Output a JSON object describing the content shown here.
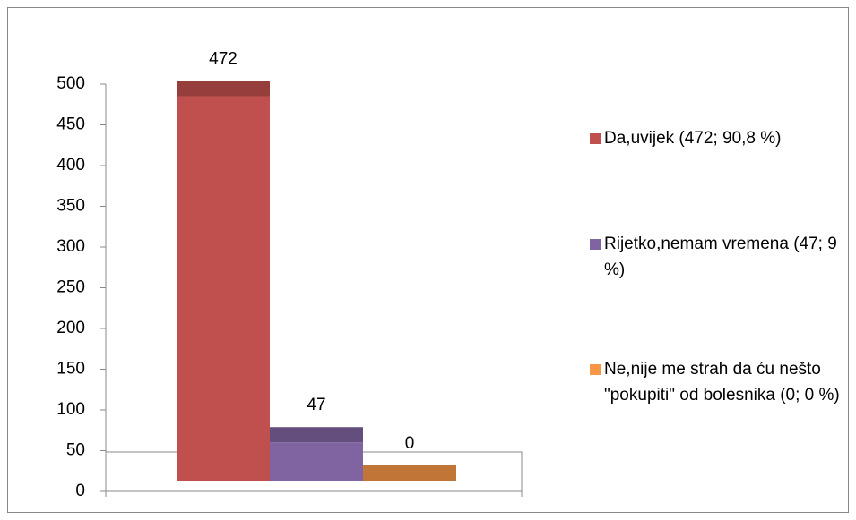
{
  "chart_data": {
    "type": "bar",
    "series": [
      {
        "name": "Da,uvijek (472; 90,8 %)",
        "color": "#c0504d",
        "values": [
          472
        ]
      },
      {
        "name": "Rijetko,nemam vremena (47; 9 %)",
        "color": "#8064a2",
        "values": [
          47
        ]
      },
      {
        "name": "Ne,nije me strah da ću nešto \"pokupiti\" od bolesnika (0; 0 %)",
        "color": "#f79646",
        "values": [
          0
        ]
      }
    ],
    "ylim": [
      0,
      500
    ],
    "yticks": [
      0,
      50,
      100,
      150,
      200,
      250,
      300,
      350,
      400,
      450,
      500
    ]
  }
}
